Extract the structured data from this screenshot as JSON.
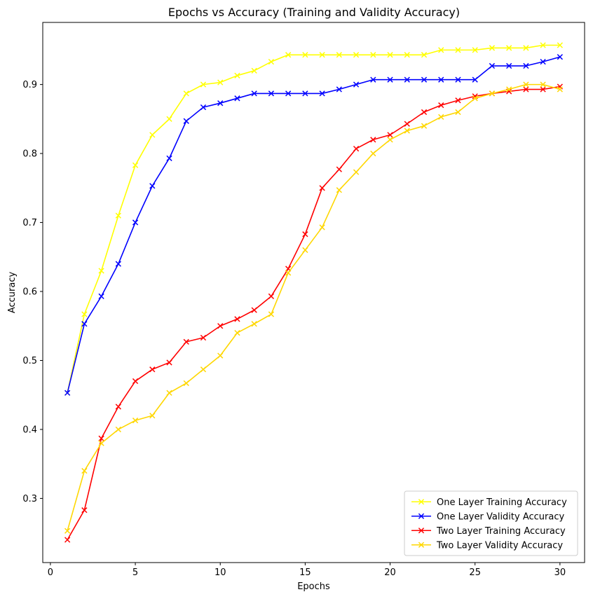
{
  "chart_data": {
    "type": "line",
    "title": "Epochs vs Accuracy (Training and Validity Accuracy)",
    "xlabel": "Epochs",
    "ylabel": "Accuracy",
    "xlim": [
      -0.45,
      31.45
    ],
    "ylim": [
      0.207,
      0.99
    ],
    "xticks": [
      0,
      5,
      10,
      15,
      20,
      25,
      30
    ],
    "yticks": [
      0.3,
      0.4,
      0.5,
      0.6,
      0.7,
      0.8,
      0.9
    ],
    "grid": false,
    "legend_position": "lower-right",
    "marker": "x",
    "x": [
      1,
      2,
      3,
      4,
      5,
      6,
      7,
      8,
      9,
      10,
      11,
      12,
      13,
      14,
      15,
      16,
      17,
      18,
      19,
      20,
      21,
      22,
      23,
      24,
      25,
      26,
      27,
      28,
      29,
      30
    ],
    "series": [
      {
        "name": "One Layer Training Accuracy",
        "color": "#ffff00",
        "values": [
          0.453,
          0.567,
          0.63,
          0.71,
          0.783,
          0.827,
          0.85,
          0.887,
          0.9,
          0.903,
          0.913,
          0.92,
          0.933,
          0.943,
          0.943,
          0.943,
          0.943,
          0.943,
          0.943,
          0.943,
          0.943,
          0.943,
          0.95,
          0.95,
          0.95,
          0.953,
          0.953,
          0.953,
          0.957,
          0.957
        ]
      },
      {
        "name": "One Layer Validity Accuracy",
        "color": "#0000ff",
        "values": [
          0.453,
          0.553,
          0.593,
          0.64,
          0.7,
          0.753,
          0.793,
          0.847,
          0.867,
          0.873,
          0.88,
          0.887,
          0.887,
          0.887,
          0.887,
          0.887,
          0.893,
          0.9,
          0.907,
          0.907,
          0.907,
          0.907,
          0.907,
          0.907,
          0.907,
          0.927,
          0.927,
          0.927,
          0.933,
          0.94
        ]
      },
      {
        "name": "Two Layer Training Accuracy",
        "color": "#ff0000",
        "values": [
          0.24,
          0.283,
          0.387,
          0.433,
          0.47,
          0.487,
          0.497,
          0.527,
          0.533,
          0.55,
          0.56,
          0.573,
          0.593,
          0.633,
          0.683,
          0.75,
          0.777,
          0.807,
          0.82,
          0.827,
          0.843,
          0.86,
          0.87,
          0.877,
          0.883,
          0.887,
          0.89,
          0.893,
          0.893,
          0.897
        ]
      },
      {
        "name": "Two Layer Validity Accuracy",
        "color": "#ffd700",
        "values": [
          0.253,
          0.34,
          0.38,
          0.4,
          0.413,
          0.42,
          0.453,
          0.467,
          0.487,
          0.507,
          0.54,
          0.553,
          0.567,
          0.627,
          0.66,
          0.693,
          0.747,
          0.773,
          0.8,
          0.82,
          0.833,
          0.84,
          0.853,
          0.86,
          0.88,
          0.887,
          0.893,
          0.9,
          0.9,
          0.893
        ]
      }
    ]
  }
}
